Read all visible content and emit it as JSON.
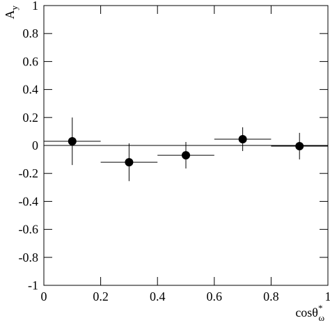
{
  "chart_data": {
    "type": "scatter",
    "ylabel": "A",
    "ylabel_sub": "y",
    "xlabel": "cosθ",
    "xlabel_sup": "*",
    "xlabel_sub": "ω",
    "xlim": [
      0,
      1
    ],
    "xticks": [
      0,
      0.2,
      0.4,
      0.6,
      0.8,
      1
    ],
    "ylim": [
      -1,
      1
    ],
    "yticks": [
      -1,
      -0.8,
      -0.6,
      -0.4,
      -0.2,
      0,
      0.2,
      0.4,
      0.6,
      0.8,
      1
    ],
    "hline": 0,
    "series": [
      {
        "color": "#000000",
        "x": [
          0.1,
          0.3,
          0.5,
          0.7,
          0.9
        ],
        "values": [
          0.03,
          -0.12,
          -0.07,
          0.045,
          -0.005
        ],
        "yerr": [
          0.17,
          0.135,
          0.095,
          0.085,
          0.095
        ],
        "xerr": [
          0.1,
          0.1,
          0.1,
          0.1,
          0.1
        ]
      }
    ]
  }
}
